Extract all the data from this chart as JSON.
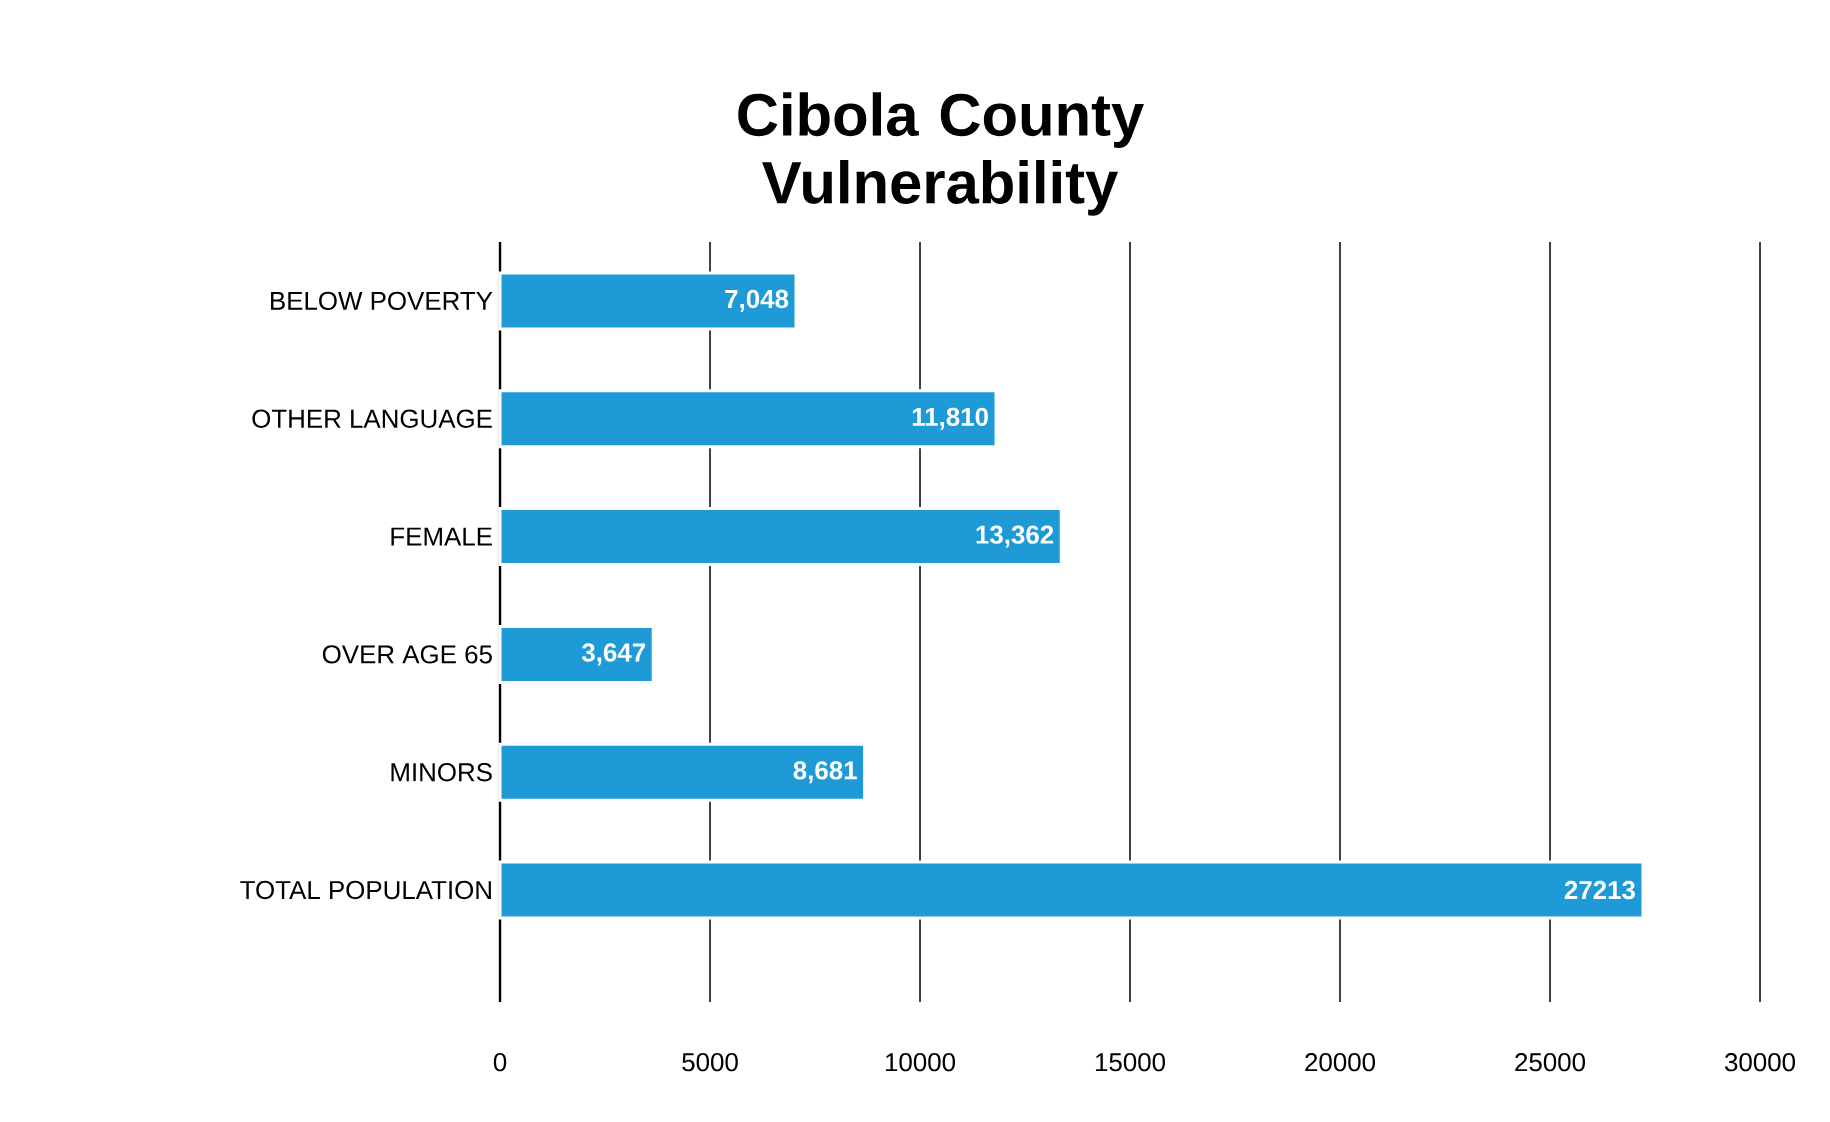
{
  "chart_data": {
    "type": "bar",
    "orientation": "horizontal",
    "title": "Cibola County Vulnerability",
    "categories": [
      "BELOW POVERTY",
      "OTHER LANGUAGE",
      "FEMALE",
      "OVER AGE 65",
      "MINORS",
      "TOTAL POPULATION"
    ],
    "values": [
      7048,
      11810,
      13362,
      3647,
      8681,
      27213
    ],
    "value_labels": [
      "7,048",
      "11,810",
      "13,362",
      "3,647",
      "8,681",
      "27213"
    ],
    "color": "#1e9ad6",
    "xlim": [
      0,
      30000
    ],
    "xticks": [
      0,
      5000,
      10000,
      15000,
      20000,
      25000,
      30000
    ],
    "grid": "x"
  }
}
